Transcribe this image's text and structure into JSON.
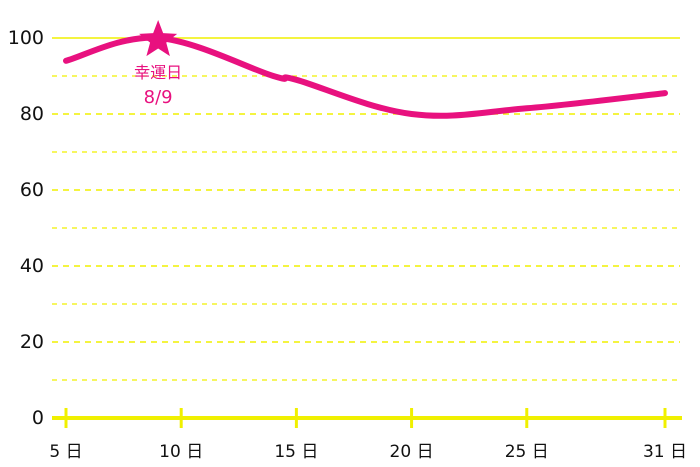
{
  "chart_data": {
    "type": "line",
    "title": "",
    "xlabel": "",
    "ylabel": "",
    "xlim": [
      5,
      31
    ],
    "ylim": [
      0,
      100
    ],
    "y_ticks": [
      0,
      20,
      40,
      60,
      80,
      100
    ],
    "y_minor_ticks": [
      10,
      30,
      50,
      70,
      90
    ],
    "y_tick_labels": [
      "0",
      "20",
      "40",
      "60",
      "80",
      "100"
    ],
    "x_ticks": [
      5,
      10,
      15,
      20,
      25,
      31
    ],
    "x_tick_labels": [
      "5 日",
      "10 日",
      "15 日",
      "20 日",
      "25 日",
      "31 日"
    ],
    "grid": true,
    "series": [
      {
        "x": [
          5,
          9,
          14,
          15,
          20,
          25,
          31
        ],
        "y": [
          94,
          100,
          90,
          89,
          80,
          81.5,
          85.5
        ]
      }
    ],
    "annotation": {
      "x": 9,
      "y": 100,
      "marker": "star",
      "label_line1": "幸運日",
      "label_line2": "8/9"
    },
    "colors": {
      "line": "#e8117f",
      "grid": "#f0f000",
      "axis": "#f0f000",
      "text": "#111111"
    }
  }
}
